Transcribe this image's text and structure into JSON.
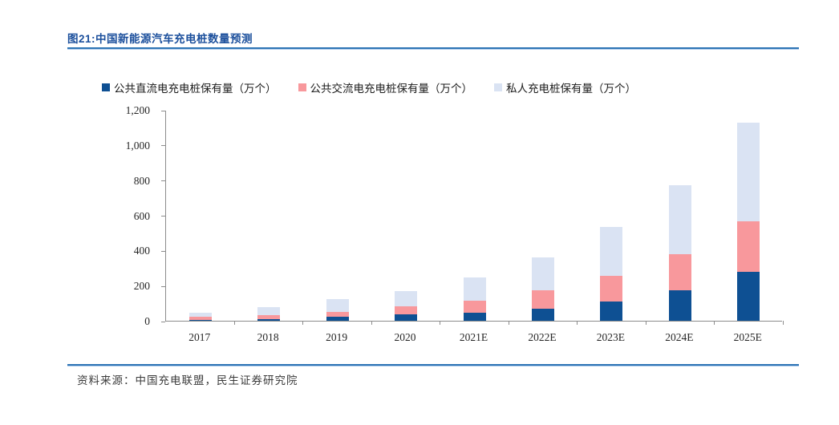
{
  "figure": {
    "title": "图21:中国新能源汽车充电桩数量预测",
    "source_note": "资料来源：中国充电联盟，民生证券研究院"
  },
  "colors": {
    "title_blue": "#1B4F9C",
    "rule_blue": "#2E74B5",
    "rule_blue_light": "#AECBEB",
    "axis_gray": "#8C8C8C",
    "series_public_dc": "#0E5093",
    "series_public_ac": "#F8989C",
    "series_private": "#DAE3F3"
  },
  "chart_data": {
    "type": "bar",
    "stacked": true,
    "title": "中国新能源汽车充电桩数量预测",
    "unit": "万个",
    "categories": [
      "2017",
      "2018",
      "2019",
      "2020",
      "2021E",
      "2022E",
      "2023E",
      "2024E",
      "2025E"
    ],
    "series": [
      {
        "name": "公共直流电充电桩保有量（万个）",
        "color": "#0E5093",
        "values": [
          6,
          11,
          22,
          38,
          45,
          70,
          110,
          175,
          280
        ]
      },
      {
        "name": "公共交流电充电桩保有量（万个）",
        "color": "#F8989C",
        "values": [
          15,
          19,
          30,
          43,
          68,
          102,
          145,
          203,
          285
        ]
      },
      {
        "name": "私人充电桩保有量（万个）",
        "color": "#DAE3F3",
        "values": [
          23,
          48,
          70,
          87,
          135,
          190,
          280,
          395,
          560
        ]
      }
    ],
    "totals": [
      44,
      78,
      122,
      168,
      248,
      362,
      535,
      773,
      1125
    ],
    "ylim": [
      0,
      1200
    ],
    "ytick_labels": [
      "0",
      "200",
      "400",
      "600",
      "800",
      "1,000",
      "1,200"
    ],
    "xlabel": "",
    "ylabel": "",
    "legend_position": "top",
    "grid": false
  }
}
